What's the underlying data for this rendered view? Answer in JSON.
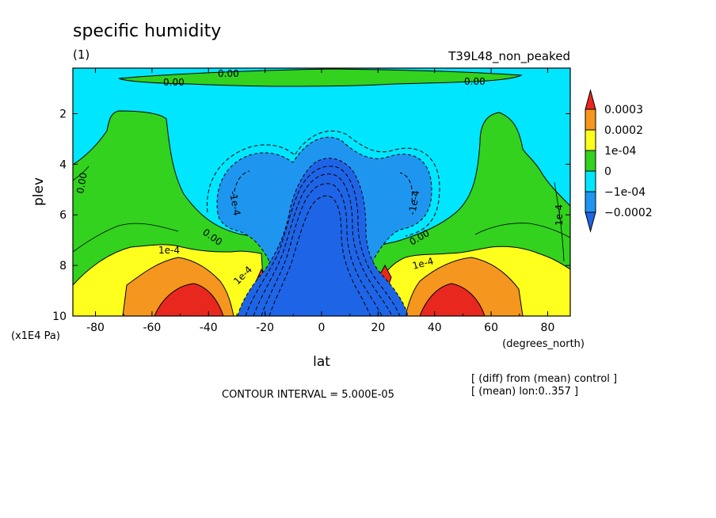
{
  "chart_data": {
    "type": "contour",
    "title": "specific humidity",
    "subtitle": "(1)",
    "experiment": "T39L48_non_peaked",
    "xlabel": "lat",
    "xunits": "(degrees_north)",
    "ylabel": "plev",
    "yunits": "(x1E4 Pa)",
    "xlim": [
      -88,
      88
    ],
    "ylim": [
      10,
      0.2
    ],
    "x_ticks": [
      "-80",
      "-60",
      "-40",
      "-20",
      "0",
      "20",
      "40",
      "60",
      "80"
    ],
    "y_ticks": [
      "2",
      "4",
      "6",
      "8",
      "10"
    ],
    "contour_interval": "CONTOUR INTERVAL = 5.000E-05",
    "notes": [
      "[ (diff) from (mean) control ]",
      "[ (mean) lon:0..357 ]"
    ],
    "colorbar": {
      "labels": [
        "0.0003",
        "0.0002",
        "1e-04",
        "0",
        "−1e-04",
        "−0.0002"
      ],
      "colors": [
        "#e8281e",
        "#f5961e",
        "#ffff1e",
        "#32d21e",
        "#00e6ff",
        "#1e96f0",
        "#1e64e6"
      ]
    },
    "contour_labels": [
      "0.00",
      "0.00",
      "0.00",
      "0.00",
      "0.00",
      "0.00",
      "1e-4",
      "1e-4",
      "1e-4",
      "1e-4",
      "-1e-4",
      "-1e-4"
    ],
    "regions": [
      {
        "level": "0.00 to 1e-04",
        "color": "#32d21e",
        "note": "thin band near top (plev 0.3-0.6) and high latitudes"
      },
      {
        "level": "-1e-04 to 0",
        "color": "#00e6ff",
        "note": "upper troposphere background"
      },
      {
        "level": "-0.0002 to -1e-04",
        "color": "#1e96f0",
        "note": "lobes near +/-15 lat at plev 3-6"
      },
      {
        "level": "< -0.0002",
        "color": "#1e64e6",
        "note": "equatorial column plev 4-10"
      },
      {
        "level": "1e-04 to 0.0002",
        "color": "#ffff1e",
        "note": "lower troposphere midlatitudes"
      },
      {
        "level": "0.0002 to 0.0003",
        "color": "#f5961e",
        "note": "plev 8-10 near +/-45"
      },
      {
        "level": "> 0.0003",
        "color": "#e8281e",
        "note": "cores near +/-45 lat, plev 9-10"
      }
    ]
  }
}
